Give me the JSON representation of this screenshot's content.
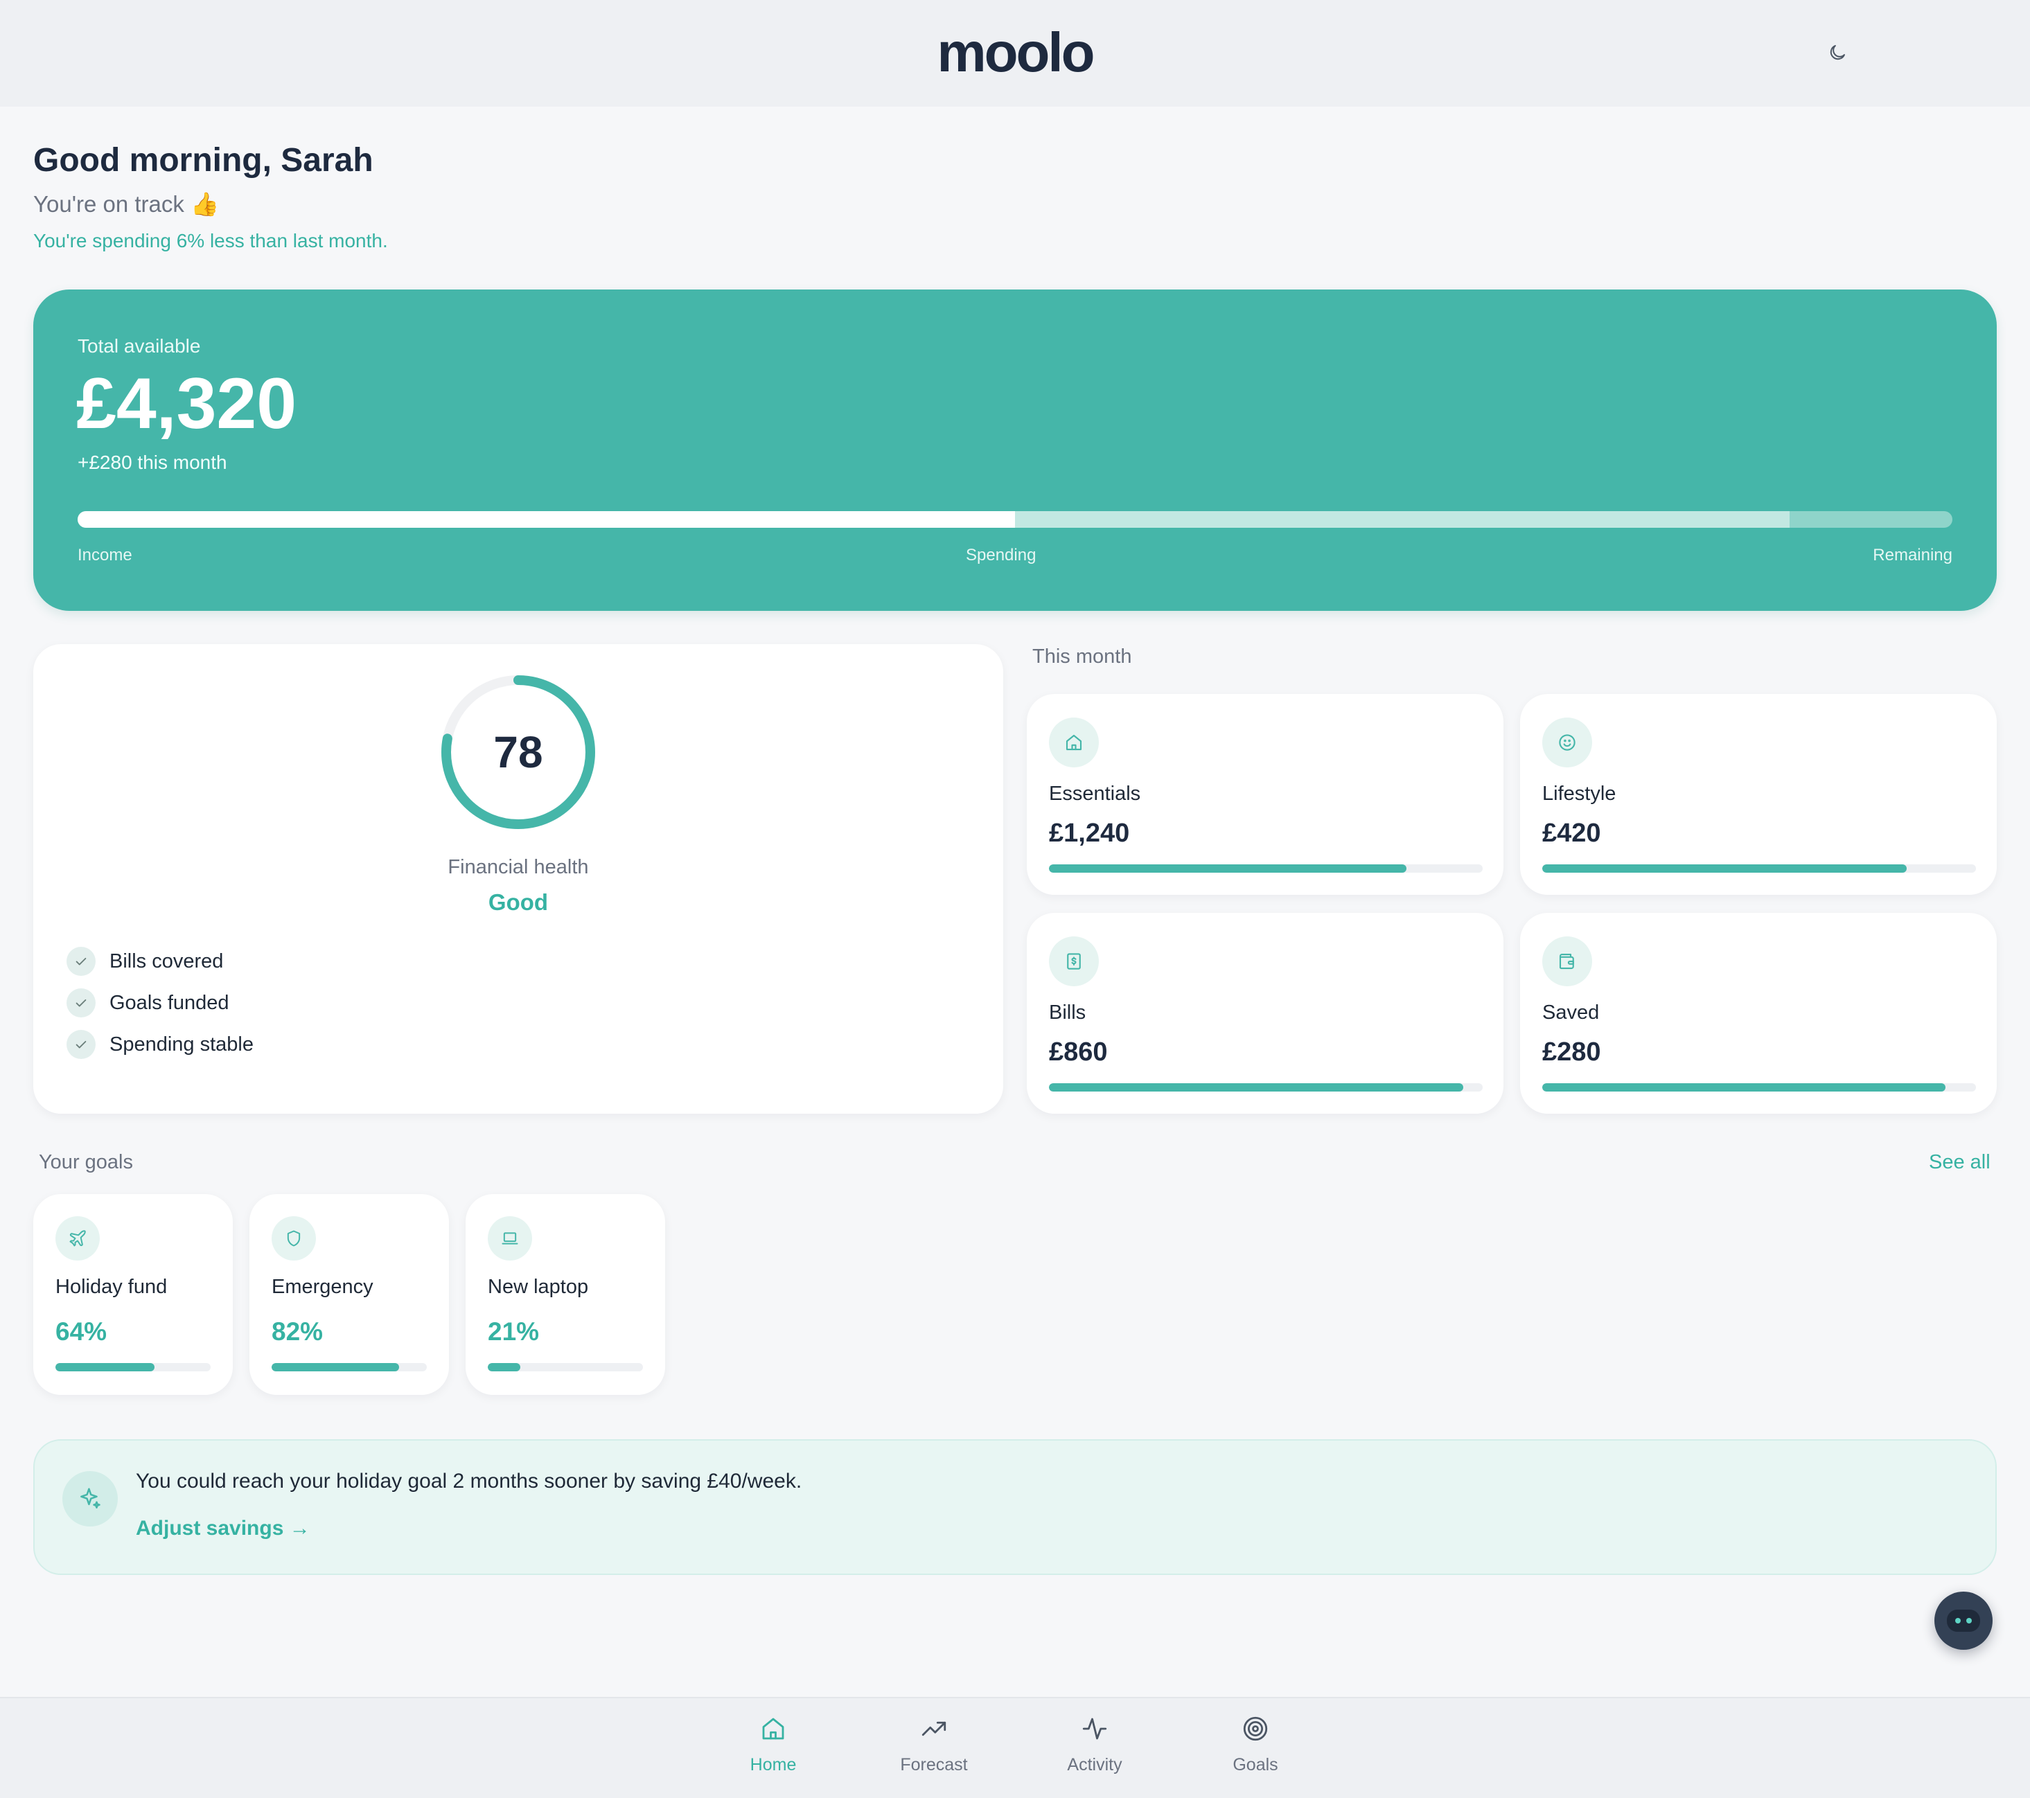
{
  "header": {
    "logo": "moolo",
    "theme_toggle_icon": "moon-icon"
  },
  "greeting": {
    "title": "Good morning, Sarah",
    "subtitle": "You're on track 👍",
    "insight": "You're spending 6% less than last month."
  },
  "summary": {
    "label": "Total available",
    "amount": "£4,320",
    "change": "+£280 this month",
    "bar": {
      "income_fraction": 0.5,
      "spending_fraction": 0.413,
      "remaining_fraction": 0.087,
      "labels": [
        "Income",
        "Spending",
        "Remaining"
      ]
    }
  },
  "health": {
    "score": "78",
    "score_value": 78,
    "label": "Financial health",
    "status": "Good",
    "checks": [
      {
        "label": "Bills covered",
        "icon": "check-icon"
      },
      {
        "label": "Goals funded",
        "icon": "check-icon"
      },
      {
        "label": "Spending stable",
        "icon": "check-icon"
      }
    ]
  },
  "this_month": {
    "title": "This month",
    "cards": [
      {
        "name": "Essentials",
        "value": "£1,240",
        "fill": 0.825,
        "icon": "home-icon"
      },
      {
        "name": "Lifestyle",
        "value": "£420",
        "fill": 0.84,
        "icon": "smile-icon"
      },
      {
        "name": "Bills",
        "value": "£860",
        "fill": 0.955,
        "icon": "receipt-icon"
      },
      {
        "name": "Saved",
        "value": "£280",
        "fill": 0.93,
        "icon": "wallet-icon"
      }
    ]
  },
  "goals": {
    "title": "Your goals",
    "see_all": "See all",
    "items": [
      {
        "name": "Holiday fund",
        "percent": "64%",
        "fill": 0.64,
        "icon": "plane-icon"
      },
      {
        "name": "Emergency",
        "percent": "82%",
        "fill": 0.82,
        "icon": "shield-icon"
      },
      {
        "name": "New laptop",
        "percent": "21%",
        "fill": 0.21,
        "icon": "laptop-icon"
      }
    ]
  },
  "tip": {
    "text": "You could reach your holiday goal 2 months sooner by saving £40/week.",
    "link": "Adjust savings →",
    "icon": "sparkle-icon"
  },
  "assistant": {
    "icon": "robot-icon"
  },
  "nav": {
    "items": [
      {
        "label": "Home",
        "icon": "home-icon",
        "active": true
      },
      {
        "label": "Forecast",
        "icon": "trend-up-icon",
        "active": false
      },
      {
        "label": "Activity",
        "icon": "activity-icon",
        "active": false
      },
      {
        "label": "Goals",
        "icon": "target-icon",
        "active": false
      }
    ]
  },
  "colors": {
    "accent": "#45b6a9",
    "accent_text": "#36b2a2",
    "ink": "#1e2a3f",
    "background": "#f6f7f9"
  }
}
